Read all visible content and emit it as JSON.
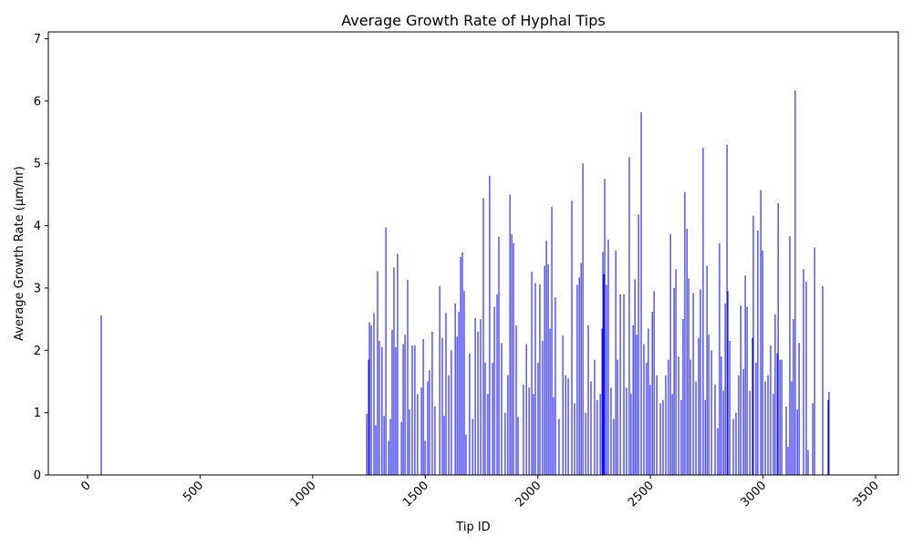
{
  "chart_data": {
    "type": "bar",
    "title": "Average Growth Rate of Hyphal Tips",
    "x_label": "Tip ID",
    "y_label": "Average Growth Rate (µm/hr)",
    "color": "#0000ff",
    "grid": false,
    "xlim": [
      -174,
      3601
    ],
    "ylim": [
      0,
      7.11
    ],
    "xticks": [
      0,
      500,
      1000,
      1500,
      2000,
      2500,
      3000,
      3500
    ],
    "yticks": [
      0,
      1,
      2,
      3,
      4,
      5,
      6,
      7
    ],
    "x": [
      61,
      1240,
      1248,
      1252,
      1260,
      1272,
      1280,
      1288,
      1296,
      1308,
      1317,
      1325,
      1337,
      1345,
      1353,
      1361,
      1369,
      1377,
      1394,
      1402,
      1410,
      1422,
      1430,
      1442,
      1454,
      1466,
      1483,
      1491,
      1499,
      1511,
      1519,
      1531,
      1543,
      1564,
      1576,
      1584,
      1592,
      1604,
      1616,
      1633,
      1641,
      1649,
      1657,
      1665,
      1673,
      1681,
      1697,
      1710,
      1722,
      1734,
      1746,
      1758,
      1766,
      1778,
      1786,
      1799,
      1807,
      1819,
      1827,
      1839,
      1855,
      1867,
      1876,
      1884,
      1892,
      1904,
      1912,
      1936,
      1949,
      1961,
      1973,
      1981,
      1989,
      2001,
      2009,
      2021,
      2030,
      2038,
      2046,
      2054,
      2062,
      2070,
      2078,
      2094,
      2111,
      2123,
      2135,
      2151,
      2163,
      2175,
      2184,
      2192,
      2200,
      2212,
      2224,
      2236,
      2252,
      2264,
      2277,
      2285,
      2289,
      2293,
      2297,
      2305,
      2313,
      2325,
      2337,
      2346,
      2354,
      2366,
      2382,
      2394,
      2406,
      2414,
      2423,
      2431,
      2439,
      2447,
      2459,
      2471,
      2483,
      2491,
      2499,
      2508,
      2516,
      2528,
      2544,
      2556,
      2568,
      2580,
      2589,
      2597,
      2605,
      2613,
      2625,
      2637,
      2645,
      2653,
      2662,
      2670,
      2678,
      2690,
      2702,
      2714,
      2722,
      2734,
      2743,
      2751,
      2759,
      2771,
      2787,
      2799,
      2807,
      2815,
      2824,
      2832,
      2840,
      2844,
      2852,
      2868,
      2880,
      2892,
      2901,
      2913,
      2921,
      2929,
      2941,
      2953,
      2957,
      2969,
      2977,
      2990,
      2998,
      3010,
      3022,
      3034,
      3046,
      3054,
      3063,
      3067,
      3075,
      3083,
      3103,
      3111,
      3119,
      3127,
      3135,
      3143,
      3152,
      3160,
      3180,
      3192,
      3200,
      3221,
      3229,
      3265,
      3289,
      3293
    ],
    "values": [
      2.56,
      0.98,
      1.85,
      2.45,
      2.4,
      2.6,
      0.8,
      3.27,
      2.15,
      2.05,
      0.95,
      3.97,
      0.55,
      0.9,
      2.33,
      3.33,
      2.05,
      3.55,
      0.85,
      2.1,
      2.25,
      3.13,
      1.05,
      2.08,
      2.08,
      1.3,
      1.4,
      2.18,
      0.55,
      1.5,
      1.68,
      2.3,
      1.1,
      3.03,
      2.2,
      0.95,
      2.6,
      1.6,
      2.0,
      2.75,
      2.22,
      2.62,
      3.5,
      3.57,
      2.95,
      0.65,
      1.95,
      0.9,
      2.52,
      2.3,
      2.5,
      4.44,
      1.8,
      1.3,
      4.8,
      1.8,
      2.7,
      2.9,
      3.82,
      2.12,
      1.0,
      1.6,
      4.5,
      3.86,
      3.72,
      2.4,
      0.93,
      1.45,
      2.1,
      1.4,
      3.26,
      1.3,
      3.08,
      1.8,
      3.06,
      2.15,
      3.35,
      3.76,
      3.38,
      2.35,
      4.3,
      1.25,
      2.85,
      0.9,
      2.24,
      1.6,
      1.55,
      4.4,
      1.15,
      3.05,
      3.17,
      3.4,
      5.0,
      1.0,
      2.4,
      1.5,
      1.85,
      1.2,
      1.3,
      2.35,
      3.58,
      3.22,
      4.75,
      3.05,
      3.78,
      1.4,
      0.9,
      3.6,
      1.85,
      2.9,
      2.9,
      1.4,
      5.1,
      1.3,
      2.4,
      3.14,
      2.25,
      4.18,
      5.82,
      2.1,
      1.8,
      2.35,
      1.45,
      2.62,
      2.95,
      1.6,
      1.15,
      1.2,
      1.6,
      1.85,
      3.87,
      1.3,
      3.0,
      3.3,
      1.9,
      1.2,
      2.5,
      4.54,
      3.95,
      3.15,
      1.85,
      2.92,
      1.5,
      2.2,
      2.98,
      5.25,
      1.2,
      3.36,
      2.25,
      2.0,
      1.45,
      0.75,
      3.72,
      1.9,
      1.35,
      2.75,
      5.3,
      2.95,
      2.15,
      0.9,
      1.0,
      1.6,
      2.72,
      1.7,
      3.2,
      2.7,
      1.35,
      2.2,
      4.16,
      1.8,
      3.92,
      4.57,
      3.6,
      1.5,
      1.6,
      2.08,
      1.3,
      2.58,
      1.95,
      4.36,
      1.85,
      1.85,
      1.1,
      0.45,
      3.83,
      1.5,
      2.5,
      6.17,
      1.05,
      2.12,
      3.3,
      3.1,
      0.4,
      1.15,
      3.65,
      3.03,
      1.2,
      1.33
    ]
  }
}
